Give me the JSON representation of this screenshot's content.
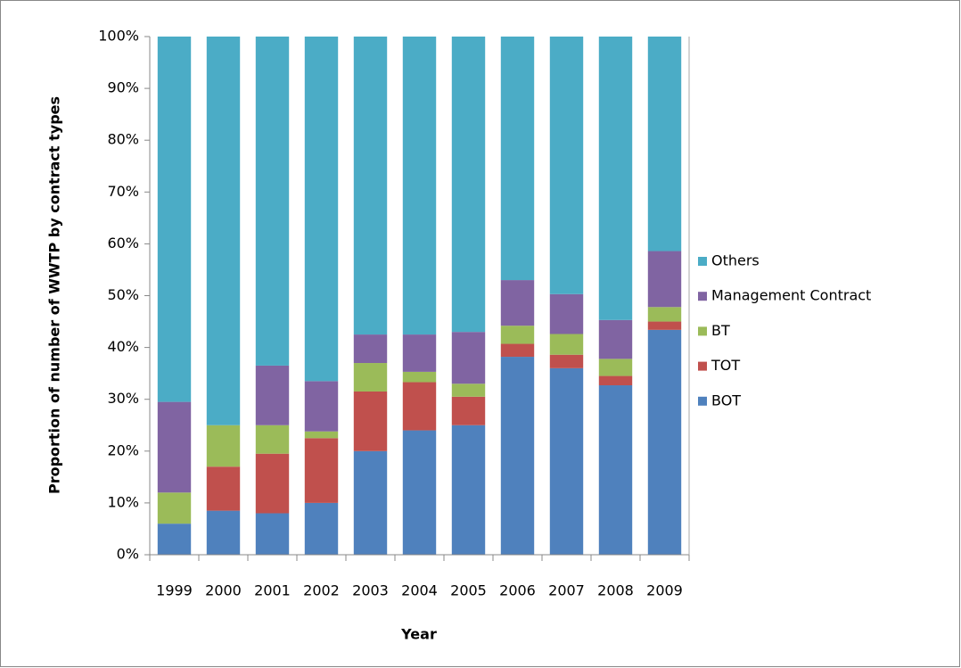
{
  "chart_data": {
    "type": "stacked_bar",
    "x_label": "Year",
    "y_label": "Proportion of number of WWTP by contract types",
    "categories": [
      "1999",
      "2000",
      "2001",
      "2002",
      "2003",
      "2004",
      "2005",
      "2006",
      "2007",
      "2008",
      "2009"
    ],
    "series": [
      {
        "name": "BOT",
        "color": "#4f81bd",
        "values": [
          6,
          8.5,
          8,
          10,
          20,
          24,
          25,
          38.2,
          36,
          32.7,
          43.4
        ]
      },
      {
        "name": "TOT",
        "color": "#c0504d",
        "values": [
          0,
          8.5,
          11.5,
          12.5,
          11.5,
          9.3,
          5.5,
          2.5,
          2.6,
          1.8,
          1.6
        ]
      },
      {
        "name": "BT",
        "color": "#9bbb59",
        "values": [
          6,
          8,
          5.5,
          1.3,
          5.5,
          2,
          2.5,
          3.5,
          4,
          3.3,
          2.8
        ]
      },
      {
        "name": "Management Contract",
        "color": "#8064a2",
        "values": [
          17.5,
          0,
          11.5,
          9.7,
          5.5,
          7.2,
          10,
          8.8,
          7.7,
          7.5,
          10.8
        ]
      },
      {
        "name": "Others",
        "color": "#4bacc6",
        "values": [
          70.5,
          75,
          63.5,
          66.5,
          57.5,
          57.5,
          57,
          47,
          49.7,
          54.7,
          41.4
        ]
      }
    ],
    "ylim": [
      0,
      100
    ],
    "yticks": [
      {
        "value": 0,
        "label": "0%"
      },
      {
        "value": 10,
        "label": "10%"
      },
      {
        "value": 20,
        "label": "20%"
      },
      {
        "value": 30,
        "label": "30%"
      },
      {
        "value": 40,
        "label": "40%"
      },
      {
        "value": 50,
        "label": "50%"
      },
      {
        "value": 60,
        "label": "60%"
      },
      {
        "value": 70,
        "label": "70%"
      },
      {
        "value": 80,
        "label": "80%"
      },
      {
        "value": 90,
        "label": "90%"
      },
      {
        "value": 100,
        "label": "100%"
      }
    ],
    "legend": "right"
  }
}
